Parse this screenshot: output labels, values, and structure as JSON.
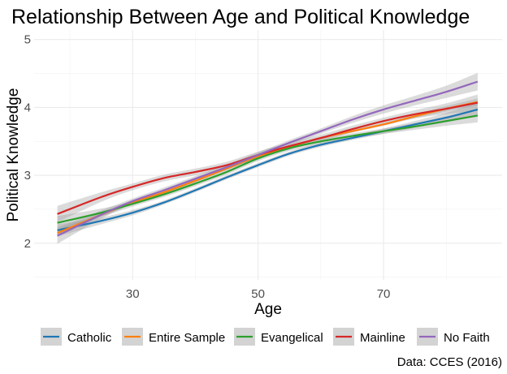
{
  "chart_data": {
    "type": "line",
    "title": "Relationship Between Age and Political Knowledge",
    "xlabel": "Age",
    "ylabel": "Political Knowledge",
    "caption": "Data: CCES (2016)",
    "xlim": [
      14.3,
      88.9
    ],
    "ylim": [
      1.46,
      5.14
    ],
    "xticks": [
      30,
      50,
      70
    ],
    "yticks": [
      2,
      3,
      4,
      5
    ],
    "grid": true,
    "legend_position": "bottom",
    "x": [
      18,
      25,
      30,
      35,
      40,
      45,
      50,
      55,
      60,
      65,
      70,
      75,
      80,
      85
    ],
    "series": [
      {
        "name": "Catholic",
        "color": "#1f77b4",
        "values": [
          2.19,
          2.33,
          2.45,
          2.6,
          2.78,
          2.97,
          3.15,
          3.32,
          3.45,
          3.55,
          3.65,
          3.75,
          3.85,
          3.97
        ],
        "se": [
          0.09,
          0.05,
          0.04,
          0.03,
          0.03,
          0.03,
          0.03,
          0.03,
          0.03,
          0.03,
          0.04,
          0.05,
          0.07,
          0.1
        ]
      },
      {
        "name": "Entire Sample",
        "color": "#ff7f0e",
        "values": [
          2.15,
          2.42,
          2.6,
          2.75,
          2.92,
          3.1,
          3.28,
          3.42,
          3.55,
          3.65,
          3.75,
          3.87,
          3.98,
          4.08
        ],
        "se": [
          0.05,
          0.03,
          0.02,
          0.02,
          0.02,
          0.02,
          0.02,
          0.02,
          0.02,
          0.02,
          0.02,
          0.03,
          0.04,
          0.05
        ]
      },
      {
        "name": "Evangelical",
        "color": "#2ca02c",
        "values": [
          2.3,
          2.45,
          2.58,
          2.72,
          2.88,
          3.05,
          3.25,
          3.4,
          3.5,
          3.58,
          3.65,
          3.72,
          3.8,
          3.88
        ],
        "se": [
          0.1,
          0.06,
          0.04,
          0.04,
          0.04,
          0.04,
          0.04,
          0.04,
          0.04,
          0.04,
          0.04,
          0.05,
          0.07,
          0.1
        ]
      },
      {
        "name": "Mainline",
        "color": "#d62728",
        "values": [
          2.43,
          2.68,
          2.83,
          2.96,
          3.05,
          3.15,
          3.3,
          3.43,
          3.55,
          3.68,
          3.8,
          3.9,
          3.98,
          4.07
        ],
        "se": [
          0.12,
          0.07,
          0.05,
          0.05,
          0.05,
          0.05,
          0.05,
          0.05,
          0.05,
          0.05,
          0.05,
          0.06,
          0.08,
          0.12
        ]
      },
      {
        "name": "No Faith",
        "color": "#9467bd",
        "values": [
          2.11,
          2.42,
          2.62,
          2.78,
          2.95,
          3.12,
          3.3,
          3.48,
          3.65,
          3.82,
          3.97,
          4.1,
          4.23,
          4.38
        ],
        "se": [
          0.12,
          0.06,
          0.04,
          0.04,
          0.04,
          0.04,
          0.04,
          0.04,
          0.04,
          0.05,
          0.06,
          0.07,
          0.09,
          0.13
        ]
      }
    ]
  }
}
